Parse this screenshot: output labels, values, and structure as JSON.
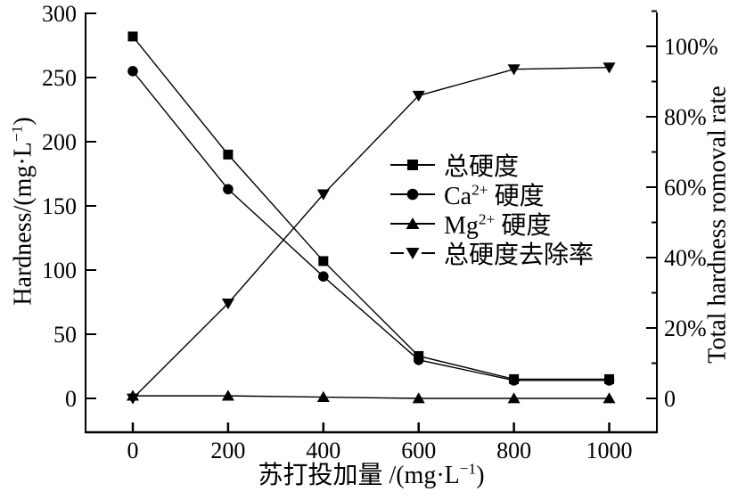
{
  "chart_data": {
    "type": "line",
    "title": "",
    "grid": false,
    "background": "#ffffff",
    "line_color": "#000000",
    "legend_position": "center-right",
    "x": [
      0,
      200,
      400,
      600,
      800,
      1000
    ],
    "x_tick_labels": [
      "0",
      "200",
      "400",
      "600",
      "800",
      "1000"
    ],
    "xlabel_prefix": "苏打投加量 /(mg·L",
    "xlabel_sup": "−1",
    "xlabel_suffix": ")",
    "left_axis": {
      "label_prefix": "Hardness/(mg·L",
      "label_sup": "−1",
      "label_suffix": ")",
      "ticks": [
        0,
        50,
        100,
        150,
        200,
        250,
        300
      ],
      "range": [
        0,
        300
      ]
    },
    "right_axis": {
      "label": "Total hardness romoval rate",
      "tick_values": [
        0,
        20,
        40,
        60,
        80,
        100
      ],
      "tick_labels": [
        "0",
        "20%",
        "40%",
        "60%",
        "80%",
        "100%"
      ],
      "minor_ticks": [
        10,
        30,
        50,
        70,
        90,
        110
      ],
      "range": [
        0,
        110
      ]
    },
    "series": [
      {
        "name": "总硬度",
        "axis": "left",
        "marker": "square",
        "values": [
          282,
          190,
          107,
          33,
          15,
          15
        ]
      },
      {
        "name_prefix": "Ca",
        "name_sup": "2+",
        "name_suffix": " 硬度",
        "axis": "left",
        "marker": "circle",
        "values": [
          255,
          163,
          95,
          30,
          14,
          14
        ]
      },
      {
        "name_prefix": "Mg",
        "name_sup": "2+",
        "name_suffix": " 硬度",
        "axis": "left",
        "marker": "triangle-up",
        "values": [
          2,
          2,
          1,
          0,
          0,
          0
        ]
      },
      {
        "name": "总硬度去除率",
        "axis": "right",
        "marker": "triangle-down",
        "values": [
          0,
          27,
          58,
          86,
          93.5,
          94
        ]
      }
    ]
  }
}
